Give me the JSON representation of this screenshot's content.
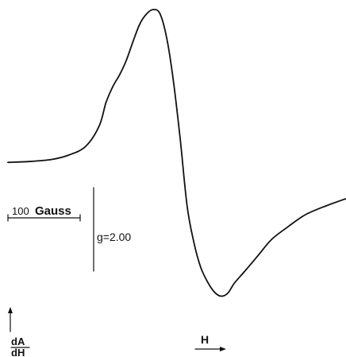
{
  "chart_data": {
    "type": "line",
    "title": "",
    "xlabel": "H",
    "ylabel": {
      "numerator": "dA",
      "denominator": "dH"
    },
    "scale_bar": {
      "label": "100",
      "unit": "Gauss",
      "value": 100
    },
    "g_marker": {
      "label": "g=2.00",
      "value": 2.0
    },
    "legend": "none",
    "grid": false,
    "xlim": [
      0,
      100
    ],
    "ylim": [
      -100,
      100
    ],
    "series": [
      {
        "points": [
          [
            0,
            -5
          ],
          [
            6,
            -4.5
          ],
          [
            13,
            -3
          ],
          [
            18,
            0
          ],
          [
            23,
            6
          ],
          [
            27,
            20
          ],
          [
            29,
            36
          ],
          [
            31,
            47
          ],
          [
            33,
            55
          ],
          [
            35,
            65
          ],
          [
            37,
            78
          ],
          [
            39,
            90
          ],
          [
            41,
            97
          ],
          [
            43,
            100
          ],
          [
            45,
            97
          ],
          [
            47,
            80
          ],
          [
            49,
            50
          ],
          [
            51,
            10
          ],
          [
            53,
            -35
          ],
          [
            55,
            -60
          ],
          [
            57,
            -77
          ],
          [
            59,
            -87
          ],
          [
            61,
            -94
          ],
          [
            63,
            -97
          ],
          [
            65,
            -95
          ],
          [
            67,
            -88
          ],
          [
            70,
            -80
          ],
          [
            74,
            -69
          ],
          [
            78,
            -58
          ],
          [
            83,
            -49
          ],
          [
            88,
            -41
          ],
          [
            94,
            -35
          ],
          [
            100,
            -30
          ]
        ]
      }
    ],
    "colors": {
      "ink": "#111111"
    }
  }
}
